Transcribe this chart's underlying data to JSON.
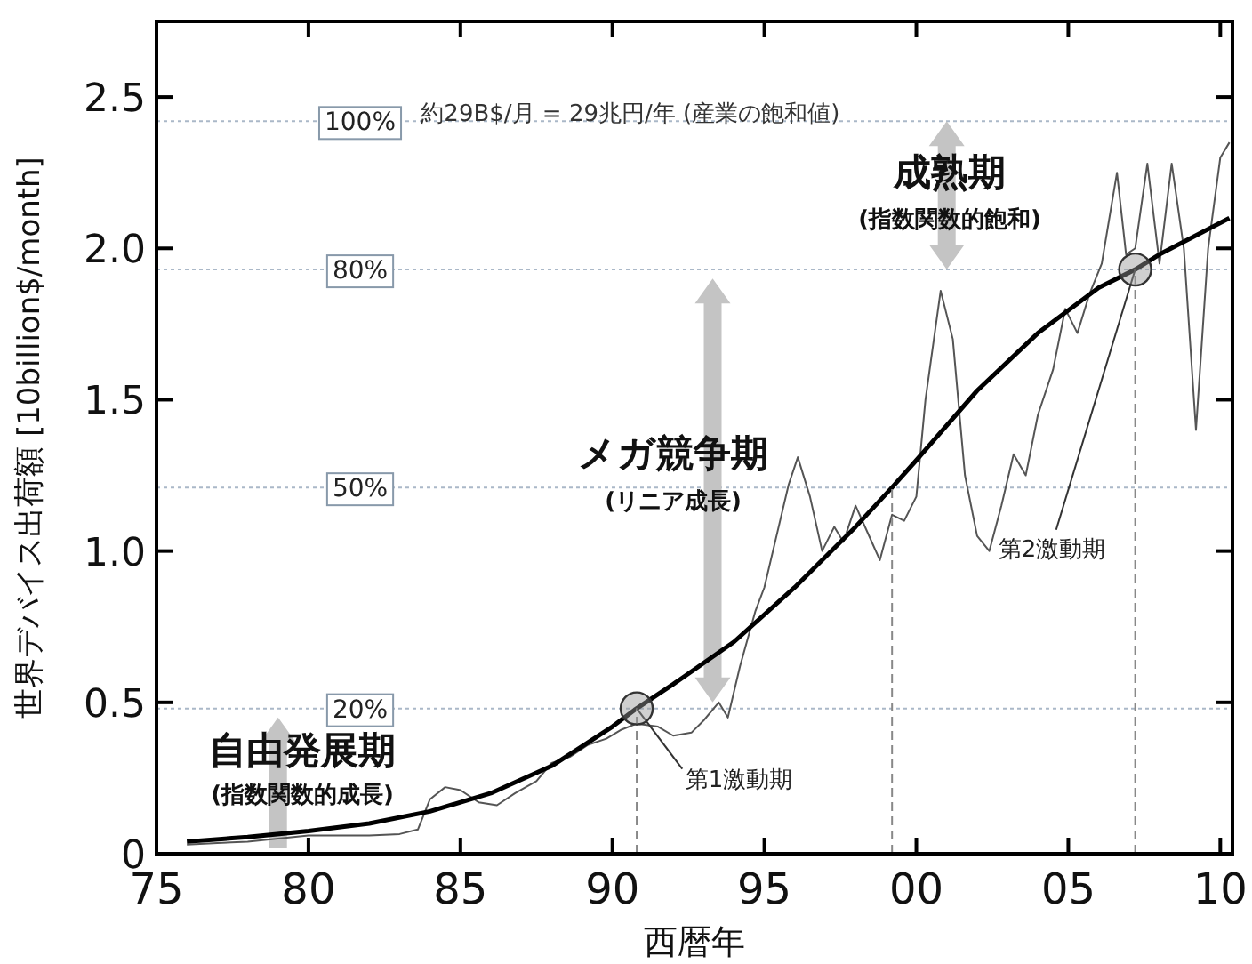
{
  "chart_data": {
    "type": "line",
    "xlabel": "西暦年",
    "ylabel": "世界デバイス出荷額 [10billion$/month]",
    "xlim": [
      1975,
      2010.4
    ],
    "ylim": [
      0,
      2.75
    ],
    "xticks": [
      {
        "value": 1975,
        "label": "75"
      },
      {
        "value": 1980,
        "label": "80"
      },
      {
        "value": 1985,
        "label": "85"
      },
      {
        "value": 1990,
        "label": "90"
      },
      {
        "value": 1995,
        "label": "95"
      },
      {
        "value": 2000,
        "label": "00"
      },
      {
        "value": 2005,
        "label": "05"
      },
      {
        "value": 2010,
        "label": "10"
      }
    ],
    "yticks": [
      0,
      0.5,
      {
        "value": 1,
        "label": "1.0"
      },
      1.5,
      {
        "value": 2,
        "label": "2.0"
      },
      2.5
    ],
    "grid": false,
    "series": [
      {
        "color": "#555555",
        "line_style": "solid",
        "x": [
          1976,
          1977,
          1978,
          1979,
          1980,
          1981,
          1982,
          1983,
          1983.6,
          1984,
          1984.5,
          1985,
          1985.6,
          1986.2,
          1986.8,
          1987.5,
          1988,
          1988.6,
          1989.2,
          1989.8,
          1990.3,
          1990.8,
          1991.5,
          1992,
          1992.6,
          1993,
          1993.5,
          1993.8,
          1994.2,
          1994.7,
          1995,
          1995.4,
          1995.8,
          1996.1,
          1996.5,
          1996.9,
          1997.3,
          1997.6,
          1998,
          1998.4,
          1998.8,
          1999.2,
          1999.6,
          2000,
          2000.3,
          2000.8,
          2001.2,
          2001.6,
          2002,
          2002.4,
          2002.8,
          2003.2,
          2003.6,
          2004,
          2004.5,
          2004.9,
          2005.3,
          2005.7,
          2006.1,
          2006.6,
          2006.9,
          2007.2,
          2007.6,
          2008,
          2008.4,
          2008.8,
          2009.2,
          2009.6,
          2010,
          2010.3
        ],
        "values": [
          0.03,
          0.035,
          0.04,
          0.05,
          0.06,
          0.06,
          0.06,
          0.065,
          0.08,
          0.18,
          0.22,
          0.21,
          0.17,
          0.16,
          0.2,
          0.24,
          0.3,
          0.32,
          0.36,
          0.38,
          0.41,
          0.43,
          0.42,
          0.39,
          0.4,
          0.44,
          0.5,
          0.45,
          0.62,
          0.8,
          0.88,
          1.05,
          1.22,
          1.31,
          1.18,
          1.0,
          1.08,
          1.03,
          1.15,
          1.06,
          0.97,
          1.12,
          1.1,
          1.18,
          1.5,
          1.86,
          1.7,
          1.25,
          1.05,
          1.0,
          1.15,
          1.32,
          1.25,
          1.45,
          1.6,
          1.8,
          1.72,
          1.85,
          1.95,
          2.25,
          1.98,
          2.0,
          2.28,
          1.95,
          2.28,
          2.0,
          1.4,
          2.0,
          2.3,
          2.35
        ]
      },
      {
        "color": "#000000",
        "line_style": "solid",
        "x": [
          1976,
          1978,
          1980,
          1982,
          1984,
          1986,
          1988,
          1990,
          1990.8,
          1992,
          1994,
          1996,
          1998,
          1999.2,
          2000,
          2002,
          2004,
          2006,
          2007.2,
          2008,
          2010.3
        ],
        "values": [
          0.04,
          0.055,
          0.075,
          0.1,
          0.14,
          0.2,
          0.29,
          0.42,
          0.48,
          0.56,
          0.7,
          0.88,
          1.08,
          1.21,
          1.3,
          1.53,
          1.72,
          1.87,
          1.93,
          1.98,
          2.1
        ]
      },
      {
        "color": "#888888",
        "line_style": "dashed",
        "x": [
          1990.8,
          1990.8
        ],
        "values": [
          0,
          0.48
        ]
      },
      {
        "color": "#888888",
        "line_style": "dashed",
        "x": [
          1999.2,
          1999.2
        ],
        "values": [
          0,
          1.21
        ]
      },
      {
        "color": "#888888",
        "line_style": "dashed",
        "x": [
          2007.2,
          2007.2
        ],
        "values": [
          0,
          1.93
        ]
      }
    ],
    "ref_lines": [
      {
        "axis": "y",
        "value": 2.42,
        "color": "#aab8c8",
        "line_style": "dotted"
      },
      {
        "axis": "y",
        "value": 1.93,
        "color": "#aab8c8",
        "line_style": "dotted"
      },
      {
        "axis": "y",
        "value": 1.21,
        "color": "#aab8c8",
        "line_style": "dotted"
      },
      {
        "axis": "y",
        "value": 0.48,
        "color": "#aab8c8",
        "line_style": "dotted"
      }
    ],
    "annotations": [
      {
        "text": "100%",
        "x": 1981.7,
        "y": 2.42
      },
      {
        "text": "80%",
        "x": 1981.7,
        "y": 1.93
      },
      {
        "text": "50%",
        "x": 1981.7,
        "y": 1.21
      },
      {
        "text": "20%",
        "x": 1981.7,
        "y": 0.48
      },
      {
        "text": "第1激動期",
        "x": 1990.8,
        "y": 0.48
      },
      {
        "text": "第2激動期",
        "x": 2007.2,
        "y": 1.93
      },
      "約29B$/月 = 29兆円/年 (産業の飽和値)",
      "自由発展期",
      "(指数関数的成長)",
      "メガ競争期",
      "(リニア成長)",
      "成熟期",
      "(指数関数的飽和)"
    ]
  }
}
